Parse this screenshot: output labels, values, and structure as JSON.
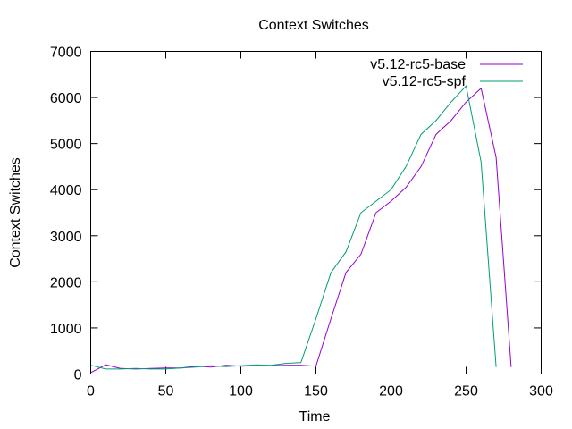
{
  "chart_data": {
    "type": "line",
    "title": "Context Switches",
    "xlabel": "Time",
    "ylabel": "Context Switches",
    "xlim": [
      0,
      300
    ],
    "ylim": [
      0,
      7000
    ],
    "xticks": [
      0,
      50,
      100,
      150,
      200,
      250,
      300
    ],
    "yticks": [
      0,
      1000,
      2000,
      3000,
      4000,
      5000,
      6000,
      7000
    ],
    "grid": false,
    "legend": "top-right",
    "series": [
      {
        "name": "v5.12-rc5-base",
        "color": "#9400d3",
        "x": [
          0,
          10,
          20,
          30,
          40,
          50,
          60,
          70,
          80,
          90,
          100,
          110,
          120,
          130,
          140,
          150,
          160,
          170,
          180,
          190,
          200,
          210,
          220,
          230,
          240,
          250,
          260,
          270,
          280
        ],
        "y": [
          30,
          200,
          120,
          110,
          120,
          130,
          130,
          170,
          150,
          190,
          170,
          180,
          180,
          190,
          190,
          170,
          1200,
          2200,
          2600,
          3500,
          3750,
          4050,
          4500,
          5200,
          5500,
          5900,
          6200,
          4700,
          150
        ]
      },
      {
        "name": "v5.12-rc5-spf",
        "color": "#009e73",
        "x": [
          0,
          10,
          20,
          30,
          40,
          50,
          60,
          70,
          80,
          90,
          100,
          110,
          120,
          130,
          140,
          150,
          160,
          170,
          180,
          190,
          200,
          210,
          220,
          230,
          240,
          250,
          260,
          270
        ],
        "y": [
          190,
          110,
          110,
          120,
          110,
          110,
          130,
          150,
          180,
          160,
          180,
          200,
          190,
          230,
          250,
          1200,
          2200,
          2650,
          3500,
          3750,
          4000,
          4500,
          5200,
          5500,
          5900,
          6250,
          4600,
          150
        ]
      }
    ]
  }
}
